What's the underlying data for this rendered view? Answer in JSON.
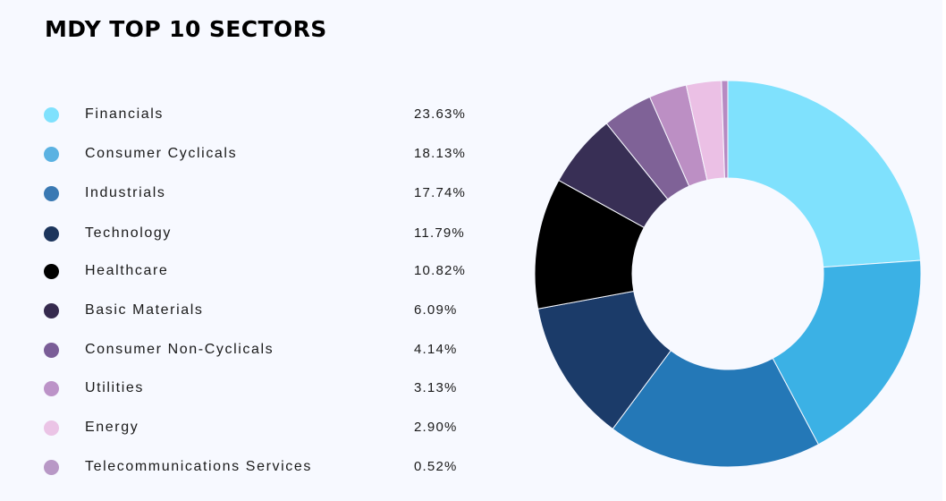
{
  "title": "MDY TOP 10 SECTORS",
  "chart_data": {
    "type": "pie",
    "variant": "donut",
    "title": "MDY TOP 10 SECTORS",
    "unit": "%",
    "legend_position": "left",
    "categories": [
      "Financials",
      "Consumer Cyclicals",
      "Industrials",
      "Technology",
      "Healthcare",
      "Basic Materials",
      "Consumer Non-Cyclicals",
      "Utilities",
      "Energy",
      "Telecommunications Services"
    ],
    "values": [
      23.63,
      18.13,
      17.74,
      11.79,
      10.82,
      6.09,
      4.14,
      3.13,
      2.9,
      0.52
    ],
    "value_labels": [
      "23.63%",
      "18.13%",
      "17.74%",
      "11.79%",
      "10.82%",
      "6.09%",
      "4.14%",
      "3.13%",
      "2.90%",
      "0.52%"
    ],
    "legend_colors": [
      "#7fe1fd",
      "#5bb2e2",
      "#3a79b3",
      "#1c355c",
      "#000000",
      "#352a4e",
      "#7a5d97",
      "#bc93c8",
      "#ebc4e6",
      "#b898c6"
    ],
    "slice_colors": [
      "#7fe1fd",
      "#3bb1e5",
      "#2478b7",
      "#1b3b69",
      "#000000",
      "#382f55",
      "#7f6297",
      "#bc8fc4",
      "#ebc0e5",
      "#b78ac2"
    ]
  }
}
